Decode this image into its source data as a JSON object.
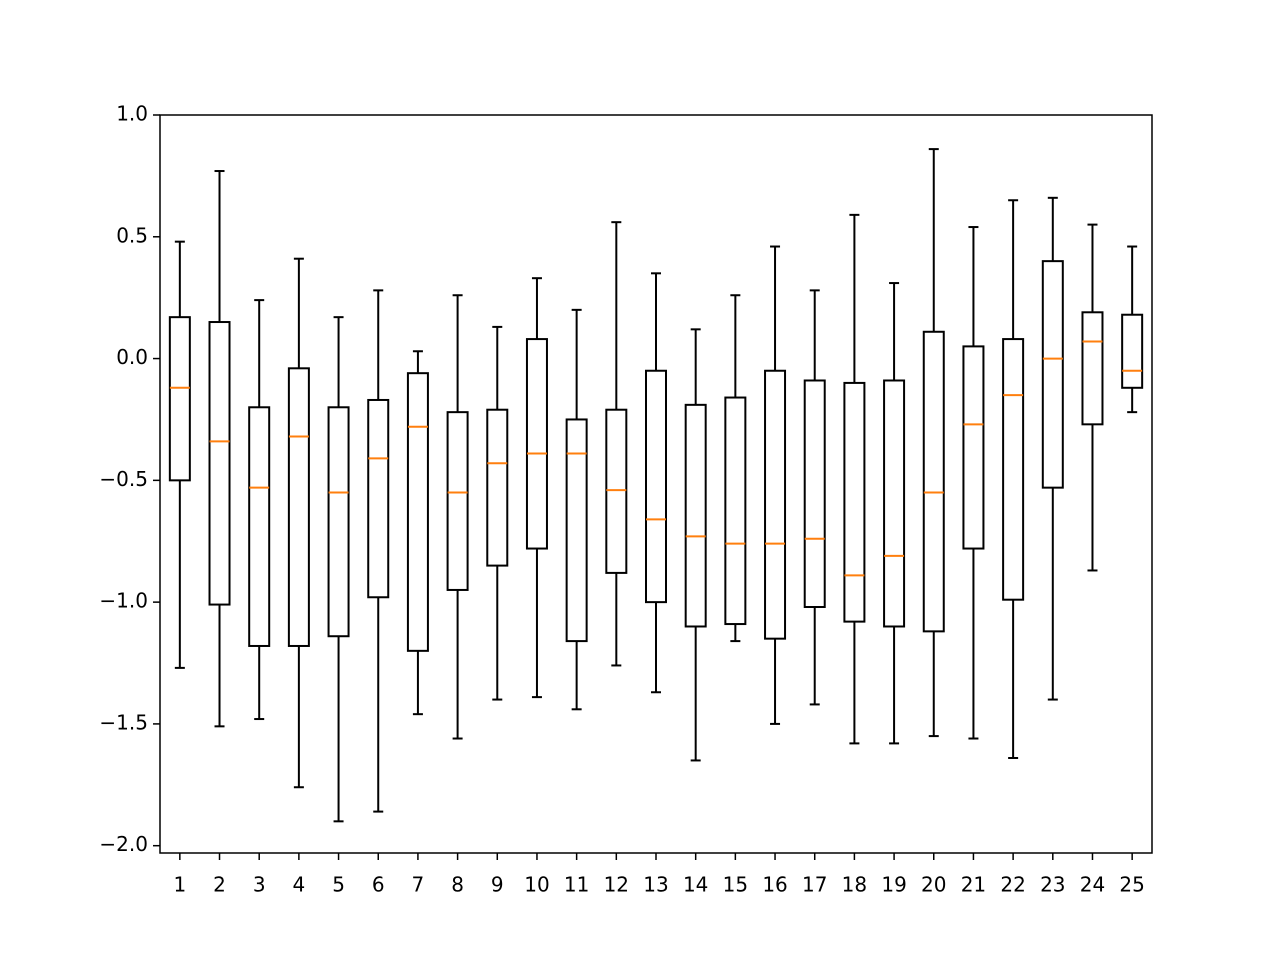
{
  "chart_data": {
    "type": "boxplot",
    "categories": [
      "1",
      "2",
      "3",
      "4",
      "5",
      "6",
      "7",
      "8",
      "9",
      "10",
      "11",
      "12",
      "13",
      "14",
      "15",
      "16",
      "17",
      "18",
      "19",
      "20",
      "21",
      "22",
      "23",
      "24",
      "25"
    ],
    "whisker_high": [
      0.48,
      0.77,
      0.24,
      0.41,
      0.17,
      0.28,
      0.03,
      0.26,
      0.13,
      0.33,
      0.2,
      0.56,
      0.35,
      0.12,
      0.26,
      0.46,
      0.28,
      0.59,
      0.31,
      0.86,
      0.54,
      0.65,
      0.66,
      0.55,
      0.46
    ],
    "q3": [
      0.17,
      0.15,
      -0.2,
      -0.04,
      -0.2,
      -0.17,
      -0.06,
      -0.22,
      -0.21,
      0.08,
      -0.25,
      -0.21,
      -0.05,
      -0.19,
      -0.16,
      -0.05,
      -0.09,
      -0.1,
      -0.09,
      0.11,
      0.05,
      0.08,
      0.4,
      0.19,
      0.18
    ],
    "median": [
      -0.12,
      -0.34,
      -0.53,
      -0.32,
      -0.55,
      -0.41,
      -0.28,
      -0.55,
      -0.43,
      -0.39,
      -0.39,
      -0.54,
      -0.66,
      -0.73,
      -0.76,
      -0.76,
      -0.74,
      -0.89,
      -0.81,
      -0.55,
      -0.27,
      -0.15,
      0.0,
      0.07,
      -0.05
    ],
    "q1": [
      -0.5,
      -1.01,
      -1.18,
      -1.18,
      -1.14,
      -0.98,
      -1.2,
      -0.95,
      -0.85,
      -0.78,
      -1.16,
      -0.88,
      -1.0,
      -1.1,
      -1.09,
      -1.15,
      -1.02,
      -1.08,
      -1.1,
      -1.12,
      -0.78,
      -0.99,
      -0.53,
      -0.27,
      -0.12
    ],
    "whisker_low": [
      -1.27,
      -1.51,
      -1.48,
      -1.76,
      -1.9,
      -1.86,
      -1.46,
      -1.56,
      -1.4,
      -1.39,
      -1.44,
      -1.26,
      -1.37,
      -1.65,
      -1.16,
      -1.5,
      -1.42,
      -1.58,
      -1.58,
      -1.55,
      -1.56,
      -1.64,
      -1.4,
      -0.87,
      -0.22
    ],
    "box_color": "#000000",
    "median_color": "#ff7f0e",
    "ylim": [
      -2.03,
      1.0
    ],
    "yticks": [
      {
        "value": -2.0,
        "label": "−2.0"
      },
      {
        "value": -1.5,
        "label": "−1.5"
      },
      {
        "value": -1.0,
        "label": "−1.0"
      },
      {
        "value": -0.5,
        "label": "−0.5"
      },
      {
        "value": 0.0,
        "label": "0.0"
      },
      {
        "value": 0.5,
        "label": "0.5"
      },
      {
        "value": 1.0,
        "label": "1.0"
      }
    ]
  }
}
